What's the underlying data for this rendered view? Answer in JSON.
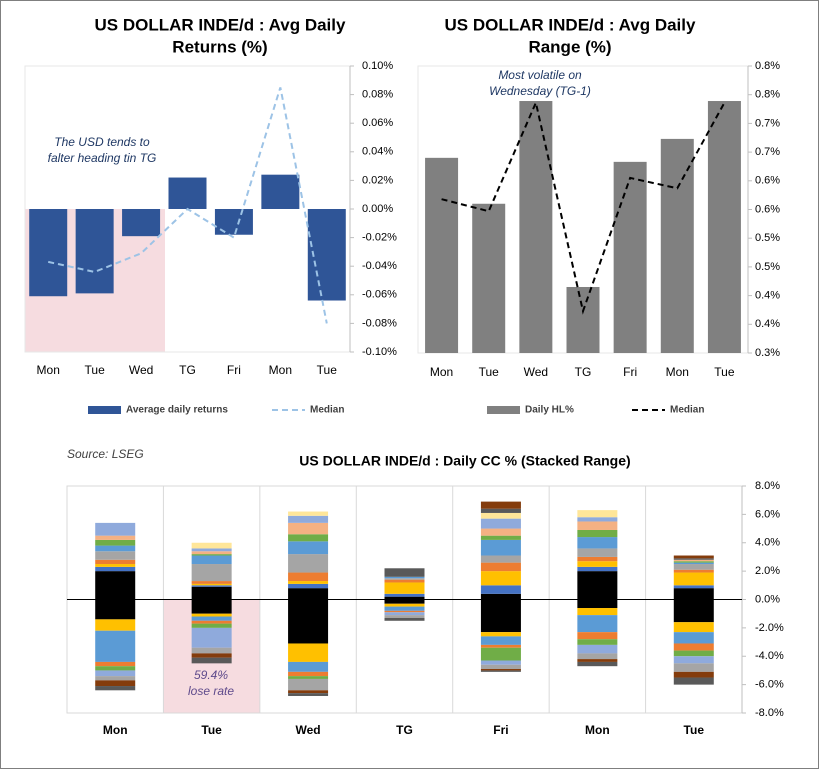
{
  "chart_data": [
    {
      "type": "bar",
      "title": [
        "US DOLLAR INDE/d : Avg Daily",
        "Returns (%)"
      ],
      "annotation": [
        "The USD tends to",
        "falter heading tin TG"
      ],
      "categories": [
        "Mon",
        "Tue",
        "Wed",
        "TG",
        "Fri",
        "Mon",
        "Tue"
      ],
      "series": [
        {
          "name": "Average daily returns",
          "type": "bar",
          "color": "#2f5597",
          "values": [
            -0.061,
            -0.059,
            -0.019,
            0.022,
            -0.018,
            0.024,
            -0.064
          ]
        },
        {
          "name": "Median",
          "type": "line",
          "dashed": true,
          "color": "#9dc3e6",
          "values": [
            -0.037,
            -0.044,
            -0.031,
            0.0,
            -0.02,
            0.085,
            -0.08
          ]
        }
      ],
      "ylim": [
        -0.1,
        0.1
      ],
      "yticks": [
        {
          "value": 0.1,
          "label": "0.10%"
        },
        {
          "value": 0.08,
          "label": "0.08%"
        },
        {
          "value": 0.06,
          "label": "0.06%"
        },
        {
          "value": 0.04,
          "label": "0.04%"
        },
        {
          "value": 0.02,
          "label": "0.02%"
        },
        {
          "value": 0,
          "label": "0.00%"
        },
        {
          "value": -0.02,
          "label": "-0.02%"
        },
        {
          "value": -0.04,
          "label": "-0.04%"
        },
        {
          "value": -0.06,
          "label": "-0.06%"
        },
        {
          "value": -0.08,
          "label": "-0.08%"
        },
        {
          "value": -0.1,
          "label": "-0.10%"
        }
      ],
      "grid": false
    },
    {
      "type": "bar",
      "title": [
        "US DOLLAR INDE/d : Avg Daily",
        "Range (%)"
      ],
      "annotation": [
        "Most volatile on",
        "Wednesday (TG-1)"
      ],
      "categories": [
        "Mon",
        "Tue",
        "Wed",
        "TG",
        "Fri",
        "Mon",
        "Tue"
      ],
      "series": [
        {
          "name": "Daily HL%",
          "type": "bar",
          "color": "#808080",
          "values": [
            0.64,
            0.56,
            0.739,
            0.415,
            0.633,
            0.673,
            0.739
          ]
        },
        {
          "name": "Median",
          "type": "line",
          "dashed": true,
          "color": "#000000",
          "values": [
            0.568,
            0.547,
            0.736,
            0.373,
            0.605,
            0.587,
            0.736
          ]
        }
      ],
      "ylim": [
        0.3,
        0.8
      ],
      "yticks": [
        {
          "value": 0.8,
          "label": "0.8%"
        },
        {
          "value": 0.75,
          "label": "0.8%"
        },
        {
          "value": 0.7,
          "label": "0.7%"
        },
        {
          "value": 0.65,
          "label": "0.7%"
        },
        {
          "value": 0.6,
          "label": "0.6%"
        },
        {
          "value": 0.55,
          "label": "0.6%"
        },
        {
          "value": 0.5,
          "label": "0.5%"
        },
        {
          "value": 0.45,
          "label": "0.5%"
        },
        {
          "value": 0.4,
          "label": "0.4%"
        },
        {
          "value": 0.35,
          "label": "0.4%"
        },
        {
          "value": 0.3,
          "label": "0.3%"
        }
      ],
      "grid": false
    },
    {
      "type": "stacked_bar",
      "title": [
        "US DOLLAR INDE/d : Daily CC % (Stacked Range)"
      ],
      "source": "Source: LSEG",
      "annotation": [
        "59.4%",
        "lose rate"
      ],
      "categories": [
        "Mon",
        "Tue",
        "Wed",
        "TG",
        "Fri",
        "Mon",
        "Tue"
      ],
      "series": [
        {
          "color": "#000000",
          "values": [
            2.0,
            0.9,
            0.8,
            0.2,
            0.4,
            2.0,
            0.8
          ]
        },
        {
          "color": "#4472c4",
          "values": [
            0.3,
            0.1,
            0.3,
            0.2,
            0.6,
            0.3,
            0.2
          ]
        },
        {
          "color": "#ffc000",
          "values": [
            0.2,
            0.1,
            0.2,
            0.8,
            1.0,
            0.4,
            0.9
          ]
        },
        {
          "color": "#ed7d31",
          "values": [
            0.3,
            0.2,
            0.6,
            0.2,
            0.6,
            0.3,
            0.2
          ]
        },
        {
          "color": "#a5a5a5",
          "values": [
            0.6,
            1.2,
            1.3,
            0.1,
            0.5,
            0.6,
            0.4
          ]
        },
        {
          "color": "#5b9bd5",
          "values": [
            0.4,
            0.6,
            0.9,
            0.1,
            1.1,
            0.8,
            0.1
          ]
        },
        {
          "color": "#70ad47",
          "values": [
            0.4,
            0.1,
            0.5,
            0,
            0.3,
            0.5,
            0.1
          ]
        },
        {
          "color": "#f4b183",
          "values": [
            0.3,
            0.2,
            0.8,
            0,
            0.5,
            0.6,
            0.1
          ]
        },
        {
          "color": "#8faadc",
          "values": [
            0.9,
            0.2,
            0.5,
            0,
            0.7,
            0.3,
            0
          ]
        },
        {
          "color": "#ffe699",
          "values": [
            0,
            0.4,
            0.3,
            0,
            0.4,
            0.5,
            0
          ]
        },
        {
          "color": "#595959",
          "values": [
            0,
            0,
            0,
            0.6,
            0.3,
            0,
            0.1
          ]
        },
        {
          "color": "#843c0c",
          "values": [
            0,
            0,
            0,
            0,
            0.5,
            0,
            0.2
          ]
        },
        {
          "color": "#000000",
          "values": [
            -1.4,
            -1.0,
            -3.1,
            -0.3,
            -2.3,
            -0.6,
            -1.6
          ]
        },
        {
          "color": "#ffc000",
          "values": [
            -0.8,
            -0.2,
            -1.3,
            -0.2,
            -0.3,
            -0.5,
            -0.7
          ]
        },
        {
          "color": "#5b9bd5",
          "values": [
            -2.2,
            -0.3,
            -0.7,
            -0.3,
            -0.6,
            -1.2,
            -0.8
          ]
        },
        {
          "color": "#ed7d31",
          "values": [
            -0.3,
            -0.2,
            -0.3,
            -0.1,
            -0.2,
            -0.5,
            -0.5
          ]
        },
        {
          "color": "#70ad47",
          "values": [
            -0.3,
            -0.3,
            -0.2,
            0,
            -0.9,
            -0.4,
            -0.4
          ]
        },
        {
          "color": "#8faadc",
          "values": [
            -0.4,
            -1.4,
            0,
            -0.2,
            -0.3,
            -0.6,
            -0.5
          ]
        },
        {
          "color": "#a5a5a5",
          "values": [
            -0.3,
            -0.4,
            -0.8,
            -0.2,
            -0.3,
            -0.4,
            -0.6
          ]
        },
        {
          "color": "#843c0c",
          "values": [
            -0.4,
            -0.3,
            -0.2,
            0,
            -0.1,
            -0.2,
            -0.4
          ]
        },
        {
          "color": "#595959",
          "values": [
            -0.3,
            -0.4,
            -0.2,
            -0.2,
            -0.1,
            -0.3,
            -0.5
          ]
        }
      ],
      "ylim": [
        -8,
        8
      ],
      "yticks": [
        {
          "value": 8,
          "label": "8.0%"
        },
        {
          "value": 6,
          "label": "6.0%"
        },
        {
          "value": 4,
          "label": "4.0%"
        },
        {
          "value": 2,
          "label": "2.0%"
        },
        {
          "value": 0,
          "label": "0.0%"
        },
        {
          "value": -2,
          "label": "-2.0%"
        },
        {
          "value": -4,
          "label": "-4.0%"
        },
        {
          "value": -6,
          "label": "-6.0%"
        },
        {
          "value": -8,
          "label": "-8.0%"
        }
      ],
      "grid": false
    }
  ]
}
